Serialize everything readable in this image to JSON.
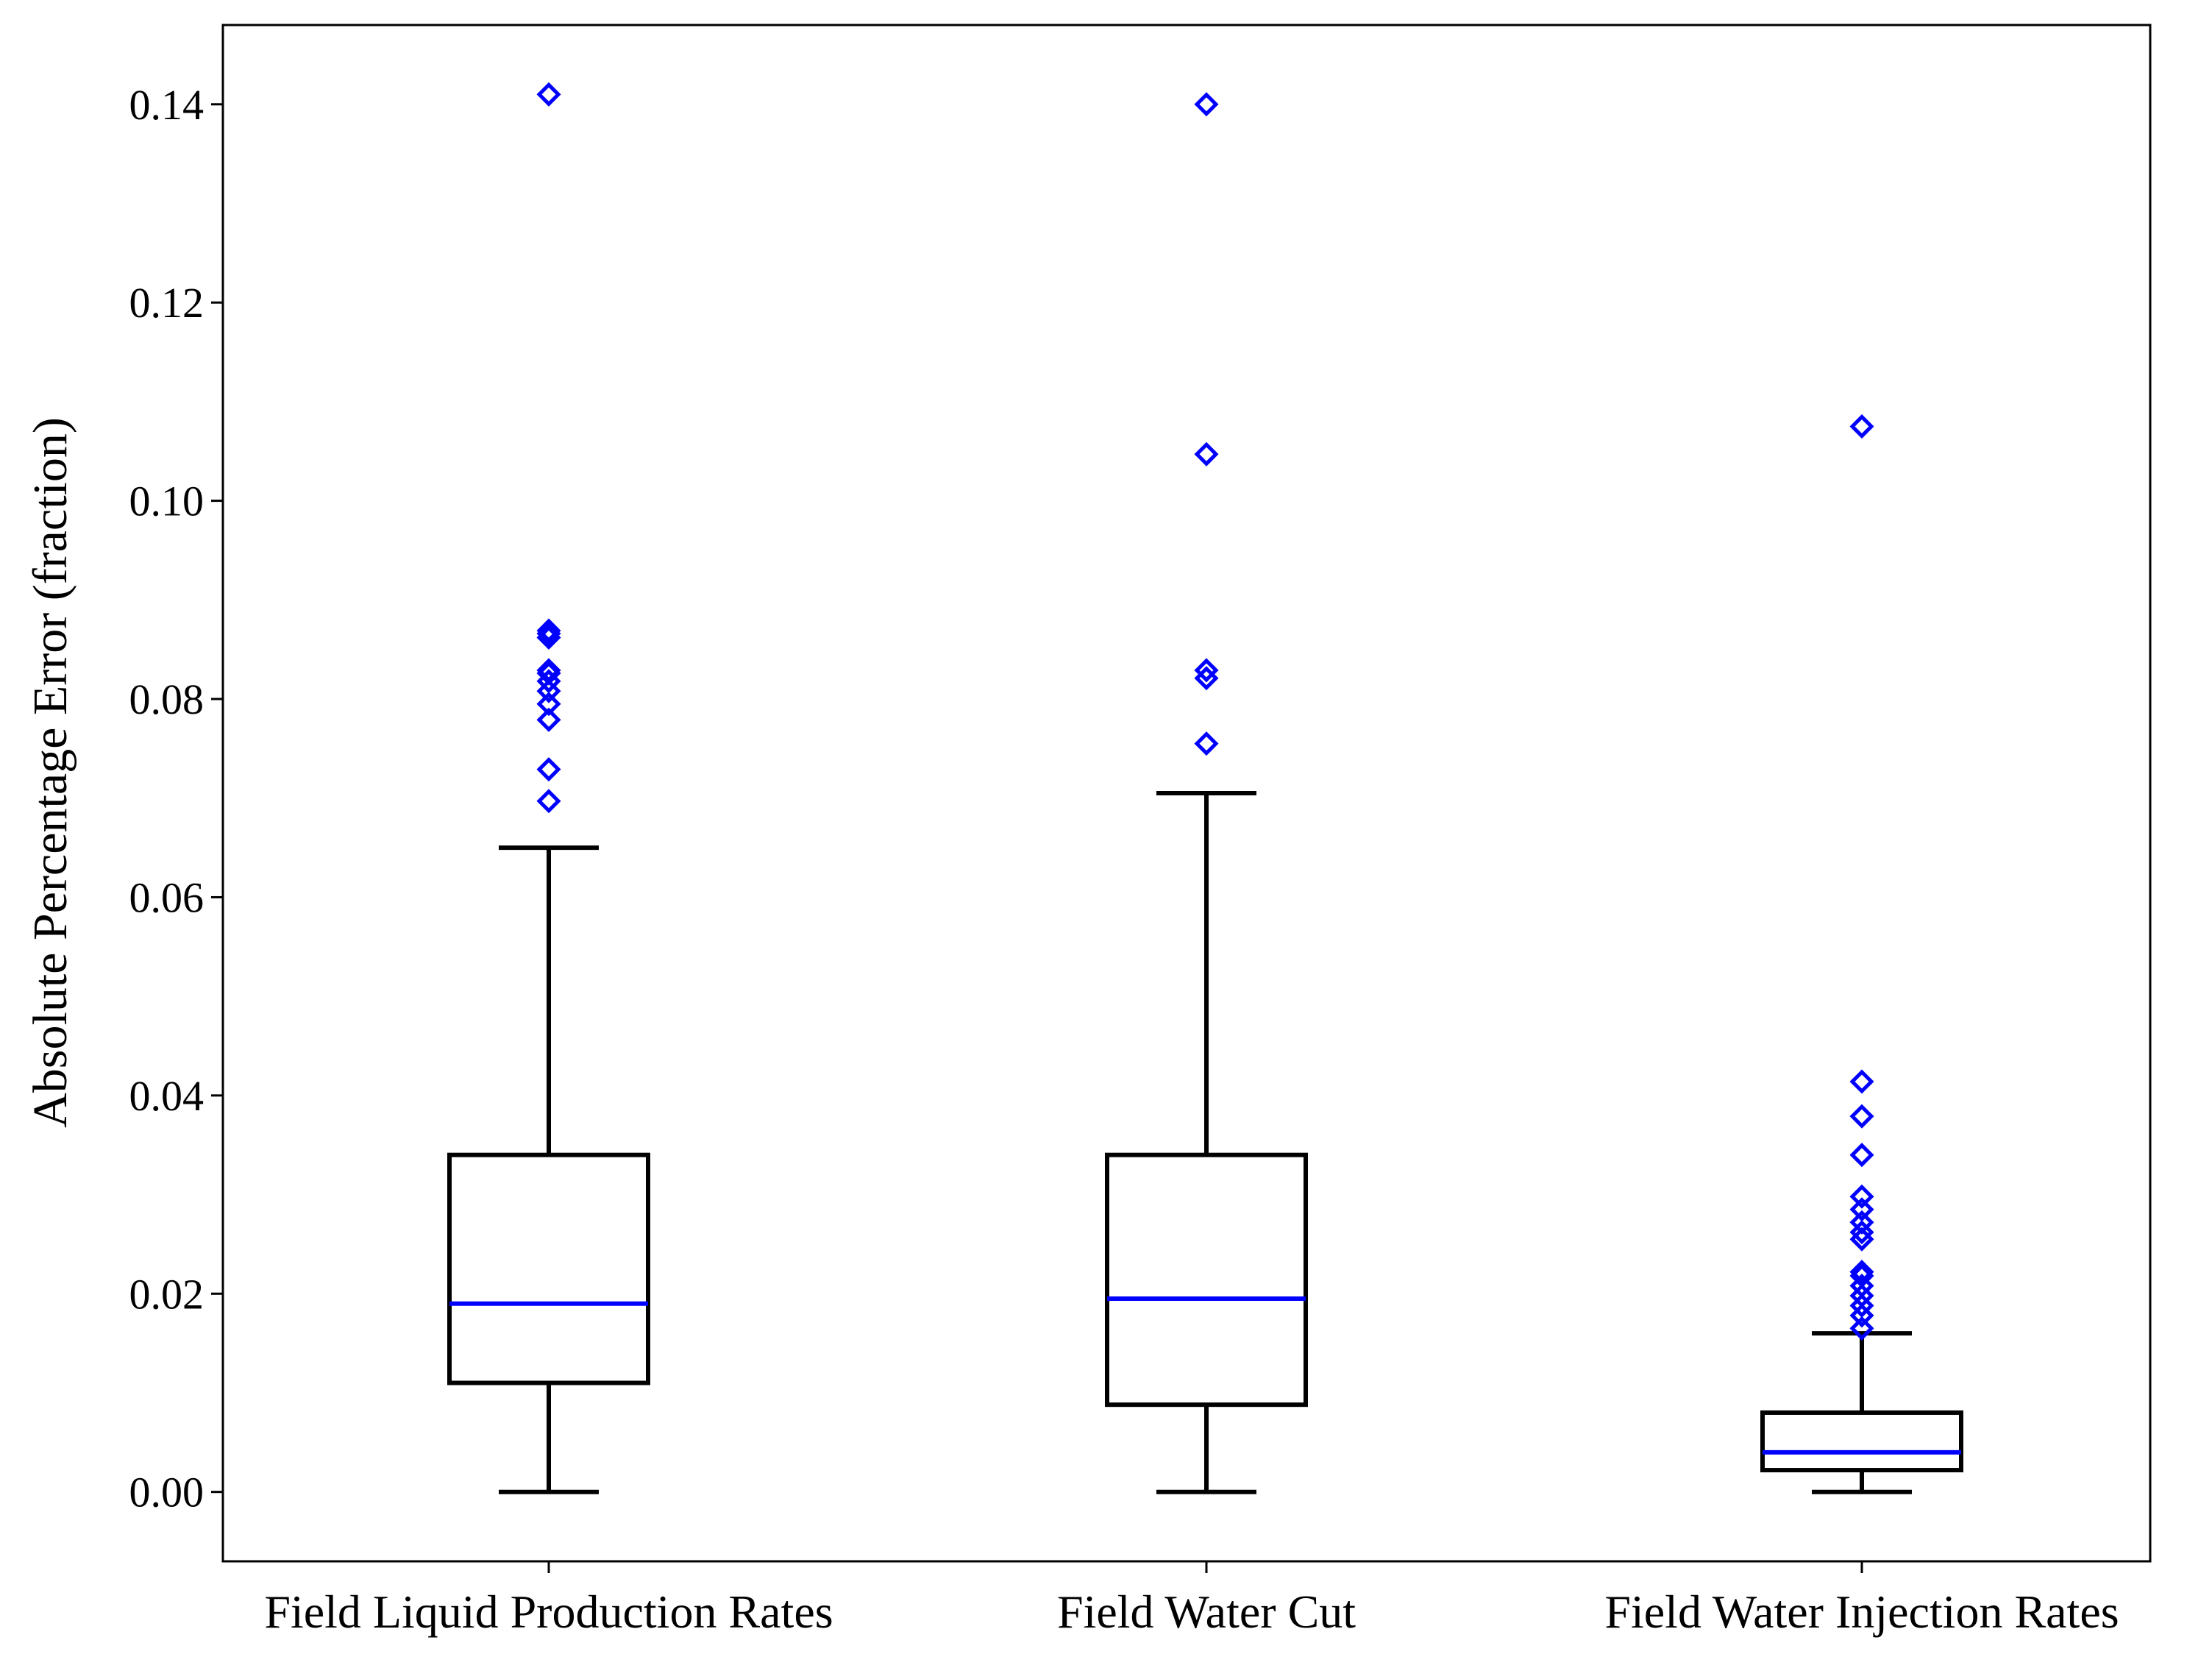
{
  "chart_data": {
    "type": "boxplot",
    "title": "",
    "xlabel": "",
    "ylabel": "Absolute Percentage Error (fraction)",
    "ylim": [
      -0.007,
      0.148
    ],
    "yticks": [
      0.0,
      0.02,
      0.04,
      0.06,
      0.08,
      0.1,
      0.12,
      0.14
    ],
    "ytick_labels": [
      "0.00",
      "0.02",
      "0.04",
      "0.06",
      "0.08",
      "0.10",
      "0.12",
      "0.14"
    ],
    "categories": [
      "Field Liquid Production Rates",
      "Field Water Cut",
      "Field Water Injection Rates"
    ],
    "boxes": [
      {
        "name": "Field Liquid Production Rates",
        "whisker_low": 0.0,
        "q1": 0.011,
        "median": 0.019,
        "q3": 0.034,
        "whisker_high": 0.065,
        "outliers": [
          0.0697,
          0.0729,
          0.0779,
          0.0795,
          0.0808,
          0.0818,
          0.0826,
          0.0829,
          0.0862,
          0.0866,
          0.0869,
          0.141
        ]
      },
      {
        "name": "Field Water Cut",
        "whisker_low": 0.0,
        "q1": 0.0088,
        "median": 0.0195,
        "q3": 0.034,
        "whisker_high": 0.0705,
        "outliers": [
          0.0755,
          0.0821,
          0.0829,
          0.1047,
          0.14
        ]
      },
      {
        "name": "Field Water Injection Rates",
        "whisker_low": 0.0,
        "q1": 0.0022,
        "median": 0.004,
        "q3": 0.008,
        "whisker_high": 0.016,
        "outliers": [
          0.0165,
          0.0178,
          0.0188,
          0.0198,
          0.0208,
          0.0218,
          0.0222,
          0.0255,
          0.0262,
          0.0272,
          0.0285,
          0.0298,
          0.034,
          0.0379,
          0.0414,
          0.1075
        ]
      }
    ],
    "colors": {
      "box": "#000000",
      "median": "#0000ff",
      "outlier": "#0000ff",
      "frame": "#000000"
    }
  }
}
